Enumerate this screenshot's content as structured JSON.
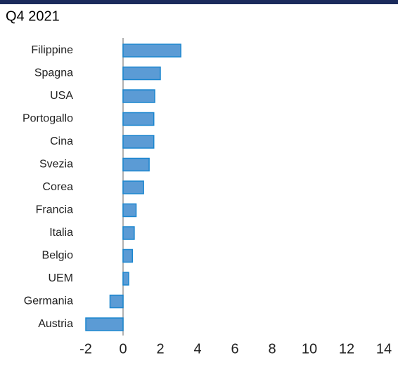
{
  "chart_data": {
    "type": "barh",
    "title": "Q4 2021",
    "categories": [
      "Filippine",
      "Spagna",
      "USA",
      "Portogallo",
      "Cina",
      "Svezia",
      "Corea",
      "Francia",
      "Italia",
      "Belgio",
      "UEM",
      "Germania",
      "Austria"
    ],
    "values": [
      3.1,
      2.0,
      1.7,
      1.65,
      1.65,
      1.4,
      1.1,
      0.7,
      0.6,
      0.5,
      0.3,
      -0.7,
      -2.0
    ],
    "color": "#5b9bd5",
    "xlim": [
      -2,
      14
    ],
    "xticks": [
      -2,
      0,
      2,
      4,
      6,
      8,
      10,
      12,
      14
    ],
    "grid": false
  }
}
